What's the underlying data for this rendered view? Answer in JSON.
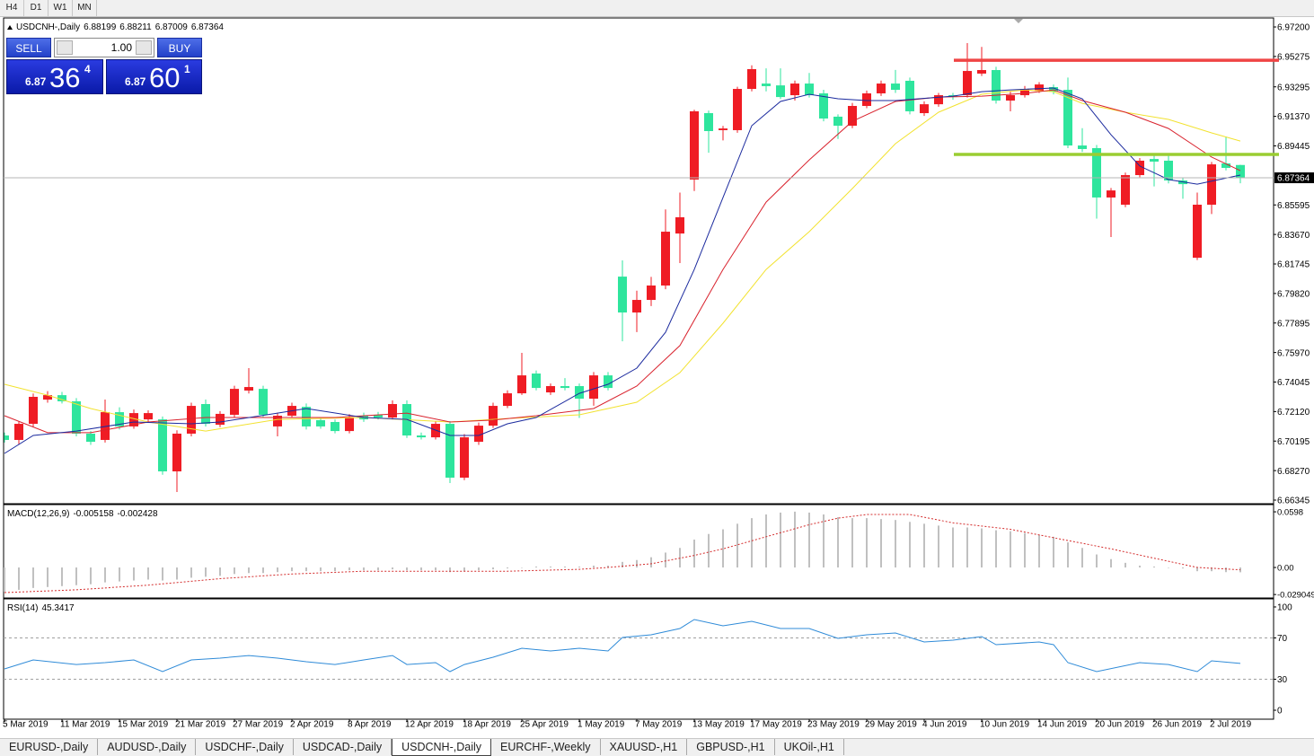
{
  "toolbar": {
    "periods": [
      "H4",
      "D1",
      "W1",
      "MN"
    ]
  },
  "trade_panel": {
    "sell_label": "SELL",
    "buy_label": "BUY",
    "lot": "1.00",
    "sell": {
      "big": "6.87",
      "pips": "36",
      "point": "4"
    },
    "buy": {
      "big": "6.87",
      "pips": "60",
      "point": "1"
    }
  },
  "chart_data": [
    {
      "type": "candlestick",
      "title": "USDCNH-,Daily",
      "up_color": "#ef1c24",
      "down_color": "#2ee59d",
      "categories": [
        "5 Mar 2019",
        null,
        null,
        null,
        "11 Mar 2019",
        null,
        null,
        null,
        "15 Mar 2019",
        null,
        null,
        null,
        "21 Mar 2019",
        null,
        null,
        null,
        "27 Mar 2019",
        null,
        null,
        null,
        "2 Apr 2019",
        null,
        null,
        null,
        "8 Apr 2019",
        null,
        null,
        null,
        "12 Apr 2019",
        null,
        null,
        null,
        "18 Apr 2019",
        null,
        null,
        null,
        "25 Apr 2019",
        null,
        null,
        null,
        "1 May 2019",
        null,
        null,
        null,
        "7 May 2019",
        null,
        null,
        null,
        "13 May 2019",
        null,
        null,
        null,
        "17 May 2019",
        null,
        null,
        null,
        "23 May 2019",
        null,
        null,
        null,
        "29 May 2019",
        null,
        null,
        null,
        "4 Jun 2019",
        null,
        null,
        null,
        "10 Jun 2019",
        null,
        null,
        null,
        "14 Jun 2019",
        null,
        null,
        null,
        "20 Jun 2019",
        null,
        null,
        null,
        "26 Jun 2019",
        null,
        null,
        null,
        "2 Jul 2019",
        null,
        null
      ],
      "open": [
        6.7056,
        6.7027,
        6.7132,
        6.729,
        6.7319,
        6.7279,
        6.7068,
        6.7027,
        6.7208,
        6.7115,
        6.7161,
        6.7161,
        6.6822,
        6.7068,
        6.7261,
        6.7126,
        6.7191,
        6.7349,
        6.736,
        6.7115,
        6.7185,
        6.7243,
        6.7156,
        6.7144,
        6.7085,
        6.7185,
        6.7191,
        6.7173,
        6.7261,
        6.7056,
        6.7044,
        6.7132,
        6.6781,
        6.7015,
        6.712,
        6.7249,
        6.7331,
        6.746,
        6.7337,
        6.7378,
        6.7378,
        6.7296,
        6.7448,
        6.8092,
        6.7858,
        6.794,
        6.8034,
        6.8373,
        6.8725,
        6.9158,
        6.9047,
        6.9047,
        6.9316,
        6.9351,
        6.9339,
        6.9275,
        6.9351,
        6.9287,
        6.9135,
        6.9076,
        6.9205,
        6.9287,
        6.9351,
        6.9369,
        6.9158,
        6.9216,
        6.9275,
        6.9275,
        6.9416,
        6.9439,
        6.924,
        6.9275,
        6.9304,
        6.9328,
        6.931,
        6.8947,
        6.893,
        6.8608,
        6.8561,
        6.8754,
        6.8859,
        6.8848,
        6.8719,
        6.8215,
        6.8561,
        6.883,
        6.88199
      ],
      "high": [
        6.7075,
        6.715,
        6.733,
        6.7345,
        6.734,
        6.73,
        6.7085,
        6.729,
        6.724,
        6.7225,
        6.722,
        6.718,
        6.709,
        6.727,
        6.729,
        6.7215,
        6.738,
        6.7495,
        6.738,
        6.7205,
        6.727,
        6.7265,
        6.7175,
        6.716,
        6.7195,
        6.7205,
        6.721,
        6.7285,
        6.7285,
        6.7075,
        6.715,
        6.715,
        6.7065,
        6.714,
        6.727,
        6.735,
        6.7595,
        6.748,
        6.7395,
        6.743,
        6.7395,
        6.747,
        6.747,
        6.8198,
        6.8,
        6.809,
        6.853,
        6.864,
        6.918,
        6.9175,
        6.9075,
        6.933,
        6.947,
        6.945,
        6.945,
        6.937,
        6.942,
        6.931,
        6.915,
        6.9225,
        6.9305,
        6.937,
        6.944,
        6.939,
        6.9235,
        6.929,
        6.929,
        6.9615,
        6.959,
        6.946,
        6.93,
        6.9335,
        6.936,
        6.9345,
        6.939,
        6.906,
        6.895,
        6.867,
        6.877,
        6.8865,
        6.888,
        6.888,
        6.8735,
        6.864,
        6.884,
        6.9006,
        6.88211
      ],
      "low": [
        6.701,
        6.7,
        6.711,
        6.727,
        6.7265,
        6.705,
        6.6995,
        6.701,
        6.7095,
        6.71,
        6.714,
        6.68,
        6.6687,
        6.705,
        6.7115,
        6.711,
        6.7175,
        6.733,
        6.7175,
        6.705,
        6.717,
        6.7095,
        6.71,
        6.707,
        6.707,
        6.7145,
        6.716,
        6.716,
        6.704,
        6.703,
        6.703,
        6.6746,
        6.6765,
        6.6995,
        6.7105,
        6.7235,
        6.732,
        6.735,
        6.732,
        6.735,
        6.717,
        6.725,
        6.735,
        6.767,
        6.773,
        6.79,
        6.801,
        6.818,
        6.865,
        6.89,
        6.898,
        6.903,
        6.93,
        6.93,
        6.925,
        6.924,
        6.926,
        6.9105,
        6.899,
        6.906,
        6.919,
        6.927,
        6.929,
        6.915,
        6.914,
        6.92,
        6.9245,
        6.926,
        6.94,
        6.922,
        6.917,
        6.926,
        6.929,
        6.928,
        6.893,
        6.8905,
        6.847,
        6.835,
        6.8545,
        6.874,
        6.868,
        6.87,
        6.86,
        6.82,
        6.85,
        6.8785,
        6.87009
      ],
      "close": [
        6.7027,
        6.7132,
        6.7308,
        6.7319,
        6.7279,
        6.7068,
        6.7015,
        6.7208,
        6.7115,
        6.7202,
        6.7202,
        6.6822,
        6.7068,
        6.7249,
        6.7132,
        6.7197,
        6.736,
        6.7372,
        6.7191,
        6.7185,
        6.7249,
        6.7115,
        6.7115,
        6.7085,
        6.7173,
        6.7161,
        6.7173,
        6.7261,
        6.7056,
        6.7044,
        6.7132,
        6.6781,
        6.7044,
        6.712,
        6.7249,
        6.7331,
        6.7448,
        6.7366,
        6.7378,
        6.7366,
        6.7296,
        6.7448,
        6.7366,
        6.7858,
        6.794,
        6.8034,
        6.8385,
        6.8479,
        6.917,
        6.9041,
        6.9058,
        6.9316,
        6.9445,
        6.9334,
        6.9263,
        6.9351,
        6.9275,
        6.9123,
        6.9076,
        6.9205,
        6.9287,
        6.9351,
        6.931,
        6.917,
        6.9216,
        6.9275,
        6.9263,
        6.9433,
        6.9439,
        6.924,
        6.9275,
        6.9316,
        6.9345,
        6.9298,
        6.8947,
        6.8924,
        6.8608,
        6.8654,
        6.8754,
        6.8848,
        6.8842,
        6.8719,
        6.8695,
        6.8561,
        6.8824,
        6.8801,
        6.87364
      ],
      "series": [
        {
          "color": "#f2e230",
          "x": [
            0,
            3,
            6,
            10,
            14,
            19,
            25,
            31,
            35,
            40,
            44,
            47,
            50,
            53,
            56,
            59,
            62,
            65,
            68,
            71,
            73,
            75,
            78,
            81,
            84,
            86
          ],
          "values": [
            6.739,
            6.7319,
            6.7232,
            6.7144,
            6.7085,
            6.7161,
            6.7173,
            6.7144,
            6.7167,
            6.7191,
            6.7273,
            6.7466,
            6.7788,
            6.8139,
            6.8385,
            6.8666,
            6.8959,
            6.9164,
            6.9281,
            6.931,
            6.9298,
            6.9222,
            6.9164,
            6.9117,
            6.9029,
            6.8976
          ]
        },
        {
          "color": "#d9232e",
          "x": [
            0,
            3,
            6,
            10,
            14,
            19,
            23,
            28,
            31,
            34,
            37,
            41,
            44,
            47,
            50,
            53,
            56,
            59,
            62,
            65,
            68,
            71,
            73,
            75,
            78,
            81,
            84,
            86
          ],
          "values": [
            6.7185,
            6.7074,
            6.7074,
            6.7144,
            6.7173,
            6.7173,
            6.7173,
            6.7202,
            6.7144,
            6.7156,
            6.7185,
            6.7232,
            6.7378,
            6.7642,
            6.8139,
            6.8578,
            6.8853,
            6.9105,
            6.9234,
            6.9263,
            6.9269,
            6.9287,
            6.931,
            6.924,
            6.9164,
            6.9058,
            6.8871,
            6.8783
          ]
        },
        {
          "color": "#1b2a9e",
          "x": [
            0,
            2,
            5,
            9,
            13,
            15,
            19,
            21,
            25,
            28,
            31,
            33,
            35,
            37,
            40,
            42,
            44,
            46,
            48,
            50,
            52,
            54,
            56,
            58,
            60,
            62,
            66,
            68,
            70,
            73,
            75,
            77,
            79,
            81,
            83,
            86
          ],
          "values": [
            6.6939,
            6.7056,
            6.7085,
            6.7144,
            6.7132,
            6.7144,
            6.7202,
            6.7232,
            6.7173,
            6.7161,
            6.7056,
            6.7056,
            6.7132,
            6.7173,
            6.7331,
            6.739,
            6.7495,
            6.7729,
            6.8139,
            6.8608,
            6.9076,
            6.9234,
            6.9281,
            6.9252,
            6.924,
            6.924,
            6.9269,
            6.9298,
            6.931,
            6.9322,
            6.9252,
            6.9017,
            6.8813,
            6.8725,
            6.8695,
            6.8754
          ]
        }
      ],
      "hlines": [
        {
          "value": 6.9503,
          "color": "#ef4444"
        },
        {
          "value": 6.8889,
          "color": "#9acd32"
        }
      ],
      "ylim": [
        6.6617,
        6.9767
      ],
      "yticks": [
        {
          "value": 6.972,
          "label": "6.97200"
        },
        6.95275,
        6.93295,
        {
          "value": 6.9137,
          "label": "6.91370"
        },
        6.89445,
        6.85595,
        {
          "value": 6.8367,
          "label": "6.83670"
        },
        6.81745,
        {
          "value": 6.7982,
          "label": "6.79820"
        },
        6.77895,
        {
          "value": 6.7597,
          "label": "6.75970"
        },
        6.74045,
        {
          "value": 6.7212,
          "label": "6.72120"
        },
        6.70195,
        {
          "value": 6.6827,
          "label": "6.68270"
        },
        6.66345
      ]
    },
    {
      "type": "macd",
      "title": "MACD(12,26,9)",
      "color": "#c0c0c0",
      "values": [
        -0.026,
        -0.024,
        -0.022,
        -0.021,
        -0.02,
        -0.019,
        -0.018,
        -0.016,
        -0.015,
        -0.014,
        -0.013,
        -0.014,
        -0.013,
        -0.011,
        -0.01,
        -0.009,
        -0.007,
        -0.006,
        -0.006,
        -0.005,
        -0.004,
        -0.004,
        -0.004,
        -0.004,
        -0.003,
        -0.003,
        -0.003,
        -0.002,
        -0.003,
        -0.003,
        -0.003,
        -0.005,
        -0.004,
        -0.003,
        -0.002,
        -0.001,
        0.0,
        0.001,
        0.001,
        0.001,
        0.001,
        0.002,
        0.002,
        0.006,
        0.008,
        0.011,
        0.016,
        0.021,
        0.03,
        0.036,
        0.041,
        0.047,
        0.053,
        0.057,
        0.059,
        0.06,
        0.059,
        0.057,
        0.054,
        0.053,
        0.053,
        0.052,
        0.051,
        0.049,
        0.047,
        0.045,
        0.043,
        0.043,
        0.042,
        0.04,
        0.039,
        0.037,
        0.035,
        0.033,
        0.027,
        0.021,
        0.014,
        0.009,
        0.005,
        0.002,
        0.001,
        0.0,
        -0.001,
        -0.004,
        -0.004,
        -0.005,
        -0.005158
      ],
      "signal": {
        "color": "#d42c2c",
        "x": [
          0,
          5,
          10,
          15,
          20,
          25,
          30,
          35,
          40,
          42,
          45,
          48,
          50,
          53,
          56,
          58,
          60,
          63,
          66,
          70,
          74,
          77,
          80,
          83,
          86
        ],
        "values": [
          -0.027,
          -0.024,
          -0.019,
          -0.012,
          -0.007,
          -0.004,
          -0.004,
          -0.004,
          -0.002,
          0.0,
          0.004,
          0.013,
          0.02,
          0.033,
          0.046,
          0.053,
          0.057,
          0.057,
          0.048,
          0.041,
          0.029,
          0.02,
          0.01,
          0.0,
          -0.002428
        ]
      },
      "ylim": [
        -0.0318,
        0.0666
      ],
      "yticks": [
        0.0598,
        {
          "value": 0,
          "label": "0.00"
        },
        -0.029049
      ]
    },
    {
      "type": "line",
      "title": "RSI(14)",
      "color": "#2f8bd8",
      "x": [
        0,
        2,
        5,
        7,
        9,
        11,
        13,
        15,
        17,
        19,
        21,
        23,
        25,
        27,
        28,
        30,
        31,
        32,
        34,
        36,
        38,
        40,
        42,
        43,
        45,
        47,
        48,
        50,
        52,
        54,
        56,
        58,
        60,
        62,
        64,
        66,
        68,
        69,
        72,
        73,
        74,
        76,
        79,
        81,
        83,
        84,
        86
      ],
      "values": [
        40.0,
        48.7,
        44.3,
        46.1,
        48.7,
        37.4,
        48.7,
        50.4,
        53.0,
        50.4,
        47.0,
        44.3,
        48.7,
        53.0,
        44.3,
        46.1,
        37.4,
        44.3,
        51.3,
        60.0,
        57.4,
        60.0,
        57.4,
        70.4,
        73.0,
        79.1,
        87.8,
        81.7,
        86.1,
        79.1,
        79.1,
        69.6,
        73.0,
        74.8,
        66.1,
        67.8,
        71.3,
        63.5,
        66.1,
        63.5,
        46.1,
        37.4,
        46.1,
        44.3,
        37.4,
        47.8,
        45.3417
      ],
      "levels": [
        70,
        30
      ],
      "ylim": [
        -7.8,
        105.2
      ],
      "yticks": [
        100,
        70,
        30,
        0
      ]
    }
  ],
  "tabs": {
    "items": [
      "EURUSD-,Daily",
      "AUDUSD-,Daily",
      "USDCHF-,Daily",
      "USDCAD-,Daily",
      "USDCNH-,Daily",
      "EURCHF-,Weekly",
      "XAUUSD-,H1",
      "GBPUSD-,H1",
      "UKOil-,H1"
    ],
    "active": 4
  }
}
